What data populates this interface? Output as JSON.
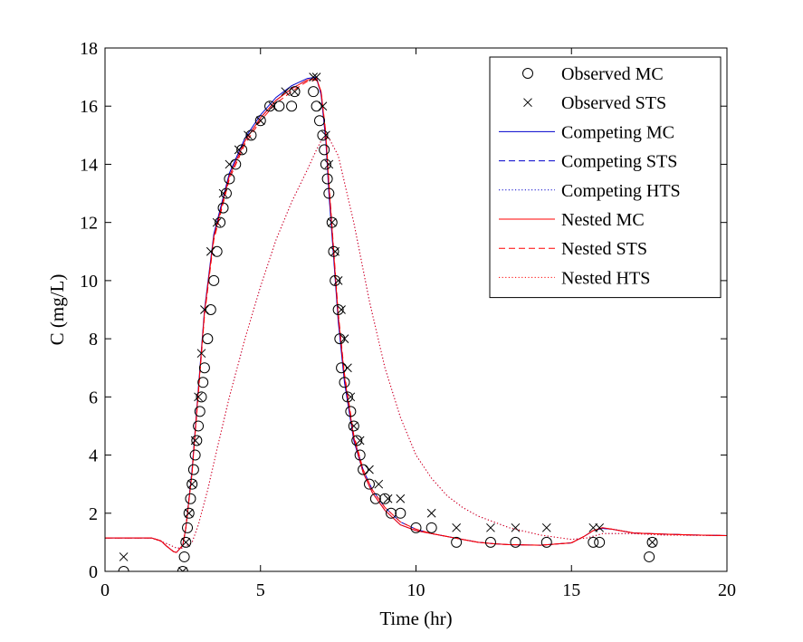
{
  "chart_data": {
    "type": "line",
    "title": "",
    "xlabel": "Time (hr)",
    "ylabel": "C (mg/L)",
    "xlim": [
      0,
      20
    ],
    "ylim": [
      0,
      18
    ],
    "xticks": [
      0,
      5,
      10,
      15,
      20
    ],
    "yticks": [
      0,
      2,
      4,
      6,
      8,
      10,
      12,
      14,
      16,
      18
    ],
    "grid": false,
    "legend_position": "top-right",
    "series": [
      {
        "name": "Observed MC",
        "kind": "marker",
        "marker": "circle",
        "color": "#000000",
        "x": [
          0.6,
          2.5,
          2.55,
          2.6,
          2.65,
          2.7,
          2.75,
          2.8,
          2.85,
          2.9,
          2.95,
          3.0,
          3.05,
          3.1,
          3.15,
          3.2,
          3.3,
          3.4,
          3.5,
          3.6,
          3.7,
          3.8,
          3.9,
          4.0,
          4.2,
          4.4,
          4.7,
          5.0,
          5.3,
          5.6,
          6.0,
          6.1,
          6.7,
          6.8,
          6.9,
          7.0,
          7.05,
          7.1,
          7.15,
          7.2,
          7.3,
          7.35,
          7.4,
          7.5,
          7.55,
          7.6,
          7.7,
          7.8,
          7.9,
          8.0,
          8.1,
          8.2,
          8.3,
          8.5,
          8.7,
          9.0,
          9.2,
          9.5,
          10.0,
          10.5,
          11.3,
          12.4,
          13.2,
          14.2,
          15.7,
          15.9,
          17.5,
          17.6
        ],
        "y": [
          0,
          0,
          0.5,
          1.0,
          1.5,
          2.0,
          2.5,
          3.0,
          3.5,
          4.0,
          4.5,
          5.0,
          5.5,
          6.0,
          6.5,
          7.0,
          8.0,
          9.0,
          10.0,
          11.0,
          12.0,
          12.5,
          13.0,
          13.5,
          14.0,
          14.5,
          15.0,
          15.5,
          16.0,
          16.0,
          16.0,
          16.5,
          16.5,
          16.0,
          15.5,
          15.0,
          14.5,
          14.0,
          13.5,
          13.0,
          12.0,
          11.0,
          10.0,
          9.0,
          8.0,
          7.0,
          6.5,
          6.0,
          5.5,
          5.0,
          4.5,
          4.0,
          3.5,
          3.0,
          2.5,
          2.5,
          2.0,
          2.0,
          1.5,
          1.5,
          1.0,
          1.0,
          1.0,
          1.0,
          1.0,
          1.0,
          0.5,
          1.0
        ]
      },
      {
        "name": "Observed STS",
        "kind": "marker",
        "marker": "x",
        "color": "#000000",
        "x": [
          0.6,
          2.5,
          2.6,
          2.7,
          2.8,
          2.9,
          3.0,
          3.1,
          3.2,
          3.4,
          3.6,
          3.8,
          4.0,
          4.3,
          4.6,
          5.0,
          5.4,
          5.8,
          6.1,
          6.7,
          6.8,
          7.0,
          7.1,
          7.2,
          7.3,
          7.4,
          7.5,
          7.6,
          7.7,
          7.8,
          7.9,
          8.0,
          8.2,
          8.5,
          8.8,
          9.1,
          9.5,
          10.5,
          11.3,
          12.4,
          13.2,
          14.2,
          15.7,
          15.9,
          17.6
        ],
        "y": [
          0.5,
          0,
          1.0,
          2.0,
          3.0,
          4.5,
          6.0,
          7.5,
          9.0,
          11.0,
          12.0,
          13.0,
          14.0,
          14.5,
          15.0,
          15.5,
          16.0,
          16.5,
          16.5,
          17.0,
          17.0,
          16.0,
          15.0,
          14.0,
          12.0,
          11.0,
          10.0,
          9.0,
          8.0,
          7.0,
          6.0,
          5.0,
          4.5,
          3.5,
          3.0,
          2.5,
          2.5,
          2.0,
          1.5,
          1.5,
          1.5,
          1.5,
          1.5,
          1.5,
          1.0
        ]
      },
      {
        "name": "Competing MC",
        "kind": "line",
        "dash": "solid",
        "color": "#0000cc",
        "x": [
          0,
          1.5,
          1.8,
          2.0,
          2.2,
          2.3,
          2.5,
          2.6,
          2.8,
          3.0,
          3.2,
          3.5,
          4.0,
          4.5,
          5.0,
          5.5,
          6.0,
          6.5,
          6.8,
          6.95,
          7.1,
          7.2,
          7.35,
          7.5,
          7.7,
          8.0,
          8.3,
          8.6,
          9.0,
          9.5,
          10.0,
          10.5,
          11.0,
          11.5,
          12.0,
          12.5,
          13.0,
          14.0,
          15.0,
          15.4,
          15.7,
          16.0,
          16.3,
          17.0,
          18.0,
          19.0,
          20.0
        ],
        "y": [
          1.15,
          1.15,
          1.05,
          0.85,
          0.68,
          0.65,
          0.9,
          1.5,
          3.5,
          6.3,
          9.0,
          11.6,
          13.7,
          14.9,
          15.7,
          16.3,
          16.7,
          16.95,
          17.0,
          16.4,
          14.8,
          13.0,
          10.8,
          8.6,
          6.5,
          4.5,
          3.4,
          2.7,
          2.1,
          1.6,
          1.4,
          1.3,
          1.2,
          1.1,
          1.0,
          0.95,
          0.92,
          0.9,
          0.98,
          1.2,
          1.4,
          1.48,
          1.45,
          1.32,
          1.28,
          1.25,
          1.23
        ]
      },
      {
        "name": "Competing STS",
        "kind": "line",
        "dash": "dashed",
        "color": "#0000cc",
        "x": [
          0,
          1.5,
          1.8,
          2.0,
          2.2,
          2.3,
          2.5,
          2.6,
          2.8,
          3.0,
          3.2,
          3.5,
          4.0,
          4.5,
          5.0,
          5.5,
          6.0,
          6.5,
          6.8,
          6.95,
          7.1,
          7.2,
          7.35,
          7.5,
          7.7,
          8.0,
          8.3,
          8.6,
          9.0,
          9.5,
          10.0,
          10.5,
          11.0,
          11.5,
          12.0,
          12.5,
          13.0,
          14.0,
          15.0,
          15.4,
          15.7,
          16.0,
          16.3,
          17.0,
          18.0,
          19.0,
          20.0
        ],
        "y": [
          1.15,
          1.15,
          1.05,
          0.85,
          0.68,
          0.65,
          0.9,
          1.5,
          3.5,
          6.2,
          8.9,
          11.5,
          13.6,
          14.8,
          15.6,
          16.2,
          16.6,
          16.9,
          16.95,
          16.4,
          14.9,
          13.1,
          10.9,
          8.7,
          6.6,
          4.6,
          3.5,
          2.8,
          2.2,
          1.7,
          1.45,
          1.3,
          1.2,
          1.1,
          1.0,
          0.95,
          0.92,
          0.9,
          0.98,
          1.2,
          1.4,
          1.48,
          1.45,
          1.32,
          1.28,
          1.25,
          1.23
        ]
      },
      {
        "name": "Competing HTS",
        "kind": "line",
        "dash": "dotted",
        "color": "#0000cc",
        "x": [
          0,
          1.5,
          2.0,
          2.3,
          2.5,
          2.8,
          3.0,
          3.3,
          3.6,
          4.0,
          4.5,
          5.0,
          5.5,
          6.0,
          6.5,
          6.8,
          7.0,
          7.2,
          7.5,
          8.0,
          8.5,
          9.0,
          9.5,
          10.0,
          10.5,
          11.0,
          11.5,
          12.0,
          12.5,
          13.0,
          14.0,
          15.0,
          15.5,
          16.0,
          17.0,
          18.0,
          20.0
        ],
        "y": [
          1.15,
          1.15,
          0.95,
          0.8,
          0.8,
          1.0,
          1.6,
          2.8,
          4.2,
          6.0,
          8.0,
          9.8,
          11.4,
          12.7,
          13.8,
          14.5,
          14.9,
          14.9,
          14.3,
          12.0,
          9.3,
          7.0,
          5.3,
          4.0,
          3.2,
          2.6,
          2.2,
          1.9,
          1.7,
          1.5,
          1.25,
          1.1,
          1.15,
          1.3,
          1.3,
          1.25,
          1.23
        ]
      },
      {
        "name": "Nested MC",
        "kind": "line",
        "dash": "solid",
        "color": "#ff0000",
        "x": [
          0,
          1.5,
          1.8,
          2.0,
          2.2,
          2.3,
          2.5,
          2.6,
          2.8,
          3.0,
          3.2,
          3.5,
          4.0,
          4.5,
          5.0,
          5.5,
          6.0,
          6.5,
          6.8,
          6.95,
          7.1,
          7.2,
          7.35,
          7.5,
          7.7,
          8.0,
          8.3,
          8.6,
          9.0,
          9.5,
          10.0,
          10.5,
          11.0,
          11.5,
          12.0,
          12.5,
          13.0,
          14.0,
          15.0,
          15.4,
          15.7,
          16.0,
          16.3,
          17.0,
          18.0,
          19.0,
          20.0
        ],
        "y": [
          1.15,
          1.15,
          1.05,
          0.85,
          0.68,
          0.65,
          0.9,
          1.5,
          3.4,
          6.2,
          8.9,
          11.5,
          13.6,
          14.8,
          15.6,
          16.2,
          16.6,
          16.9,
          16.95,
          16.5,
          15.0,
          13.3,
          11.0,
          8.8,
          6.7,
          4.6,
          3.4,
          2.7,
          2.1,
          1.6,
          1.4,
          1.3,
          1.2,
          1.1,
          1.0,
          0.95,
          0.92,
          0.9,
          0.98,
          1.2,
          1.4,
          1.5,
          1.45,
          1.32,
          1.28,
          1.25,
          1.23
        ]
      },
      {
        "name": "Nested STS",
        "kind": "line",
        "dash": "dashed",
        "color": "#ff0000",
        "x": [
          0,
          1.5,
          1.8,
          2.0,
          2.2,
          2.3,
          2.5,
          2.6,
          2.8,
          3.0,
          3.2,
          3.5,
          4.0,
          4.5,
          5.0,
          5.5,
          6.0,
          6.5,
          6.8,
          6.95,
          7.1,
          7.2,
          7.35,
          7.5,
          7.7,
          8.0,
          8.3,
          8.6,
          9.0,
          9.5,
          10.0,
          10.5,
          11.0,
          11.5,
          12.0,
          12.5,
          13.0,
          14.0,
          15.0,
          15.4,
          15.7,
          16.0,
          16.3,
          17.0,
          18.0,
          19.0,
          20.0
        ],
        "y": [
          1.15,
          1.15,
          1.05,
          0.85,
          0.68,
          0.65,
          0.9,
          1.5,
          3.4,
          6.1,
          8.8,
          11.4,
          13.5,
          14.7,
          15.5,
          16.1,
          16.5,
          16.85,
          16.9,
          16.5,
          15.1,
          13.4,
          11.1,
          8.9,
          6.8,
          4.7,
          3.5,
          2.8,
          2.2,
          1.7,
          1.45,
          1.3,
          1.2,
          1.1,
          1.0,
          0.95,
          0.92,
          0.9,
          0.98,
          1.2,
          1.4,
          1.5,
          1.45,
          1.32,
          1.28,
          1.25,
          1.23
        ]
      },
      {
        "name": "Nested HTS",
        "kind": "line",
        "dash": "dotted",
        "color": "#ff0000",
        "x": [
          0,
          1.5,
          2.0,
          2.3,
          2.5,
          2.8,
          3.0,
          3.3,
          3.6,
          4.0,
          4.5,
          5.0,
          5.5,
          6.0,
          6.5,
          6.8,
          7.0,
          7.2,
          7.5,
          8.0,
          8.5,
          9.0,
          9.5,
          10.0,
          10.5,
          11.0,
          11.5,
          12.0,
          12.5,
          13.0,
          14.0,
          15.0,
          15.5,
          16.0,
          17.0,
          18.0,
          20.0
        ],
        "y": [
          1.15,
          1.15,
          0.95,
          0.8,
          0.8,
          1.0,
          1.6,
          2.8,
          4.2,
          6.0,
          8.0,
          9.8,
          11.4,
          12.7,
          13.8,
          14.5,
          14.9,
          14.9,
          14.3,
          12.0,
          9.3,
          7.0,
          5.3,
          4.0,
          3.2,
          2.6,
          2.2,
          1.9,
          1.7,
          1.5,
          1.25,
          1.1,
          1.15,
          1.3,
          1.3,
          1.25,
          1.23
        ]
      }
    ]
  }
}
